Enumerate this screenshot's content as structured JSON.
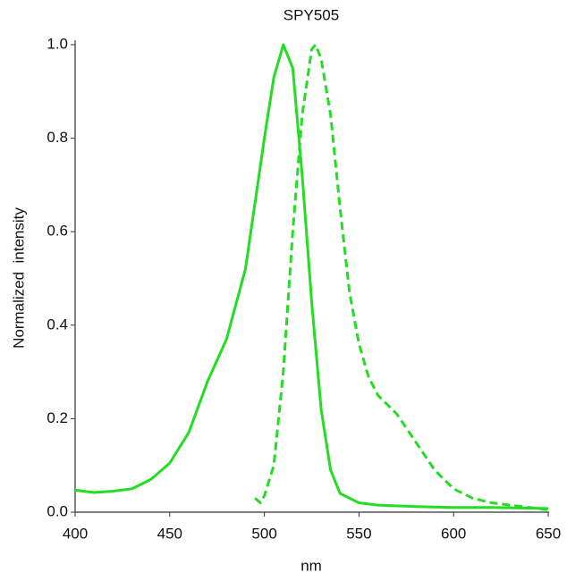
{
  "chart_data": {
    "type": "line",
    "title": "SPY505",
    "xlabel": "nm",
    "ylabel": "Normalized  intensity",
    "xlim": [
      400,
      650
    ],
    "ylim": [
      0,
      1
    ],
    "xticks": [
      400,
      450,
      500,
      550,
      600,
      650
    ],
    "yticks": [
      {
        "value": 0,
        "label": "0.0"
      },
      0.2,
      0.4,
      0.6,
      0.8,
      {
        "value": 1,
        "label": "1.0"
      }
    ],
    "series": [
      {
        "color": "#22dd22",
        "dashed": false,
        "x": [
          400,
          410,
          420,
          430,
          440,
          450,
          460,
          470,
          480,
          490,
          500,
          505,
          510,
          515,
          520,
          525,
          530,
          535,
          540,
          550,
          560,
          580,
          600,
          620,
          650
        ],
        "values": [
          0.047,
          0.042,
          0.045,
          0.05,
          0.07,
          0.105,
          0.17,
          0.28,
          0.37,
          0.52,
          0.8,
          0.93,
          1.0,
          0.95,
          0.72,
          0.45,
          0.22,
          0.09,
          0.04,
          0.02,
          0.015,
          0.012,
          0.01,
          0.01,
          0.008
        ]
      },
      {
        "color": "#22dd22",
        "dashed": true,
        "x": [
          495,
          498,
          500,
          505,
          510,
          515,
          520,
          525,
          527,
          530,
          535,
          540,
          545,
          550,
          555,
          560,
          570,
          580,
          590,
          600,
          610,
          620,
          630,
          640,
          650
        ],
        "values": [
          0.03,
          0.02,
          0.035,
          0.1,
          0.3,
          0.6,
          0.85,
          0.99,
          1.0,
          0.97,
          0.85,
          0.65,
          0.47,
          0.36,
          0.29,
          0.25,
          0.21,
          0.15,
          0.09,
          0.05,
          0.03,
          0.02,
          0.015,
          0.01,
          0.005
        ]
      }
    ]
  }
}
